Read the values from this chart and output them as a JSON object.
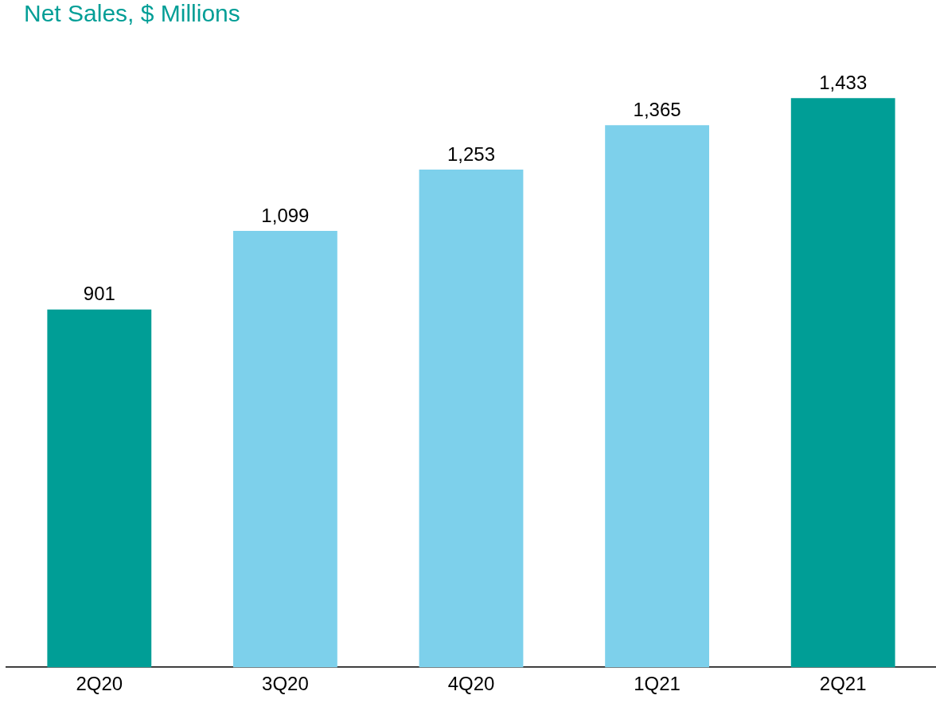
{
  "chart_data": {
    "type": "bar",
    "title": "Net Sales, $ Millions",
    "categories": [
      "2Q20",
      "3Q20",
      "4Q20",
      "1Q21",
      "2Q21"
    ],
    "values": [
      901,
      1099,
      1253,
      1365,
      1433
    ],
    "colors": [
      "#009e96",
      "#7dd0eb",
      "#7dd0eb",
      "#7dd0eb",
      "#009e96"
    ],
    "value_labels": [
      "901",
      "1,099",
      "1,253",
      "1,365",
      "1,433"
    ],
    "grid": false,
    "legend": false,
    "tick_labels": "x"
  }
}
